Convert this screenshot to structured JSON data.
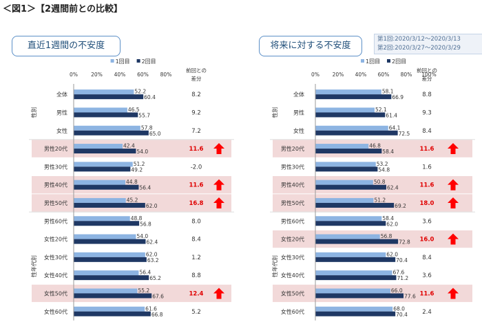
{
  "figure_title": "＜図1＞【2週間前との比較】",
  "date_legend": {
    "round1": "第1回:2020/3/12〜2020/3/13",
    "round2": "第2回:2020/3/27〜2020/3/29"
  },
  "colors": {
    "series1": "#8db4e2",
    "series2": "#1f3864",
    "highlight": "#f2d9d9",
    "increase_text": "#e00000",
    "arrow": "#ff0000",
    "axis": "#999999",
    "panel_border": "#5b8fc7"
  },
  "diff_header": [
    "前回との",
    "差分"
  ],
  "group_labels": {
    "gender": "性別",
    "gender_age": "性年代別"
  },
  "chart_data": [
    {
      "type": "bar",
      "orientation": "horizontal",
      "title": "直近1週間の不安度",
      "xlim": [
        0,
        80
      ],
      "x_ticks": [
        "0%",
        "20%",
        "40%",
        "60%",
        "80%"
      ],
      "series": [
        {
          "name": "1回目",
          "values": [
            52.2,
            46.5,
            57.8,
            42.4,
            51.2,
            44.8,
            45.2,
            48.8,
            54.0,
            62.0,
            56.4,
            55.2,
            61.6
          ]
        },
        {
          "name": "2回目",
          "values": [
            60.4,
            55.7,
            65.0,
            54.0,
            49.2,
            56.4,
            62.0,
            56.8,
            62.4,
            63.2,
            65.2,
            67.6,
            66.8
          ]
        }
      ],
      "categories": [
        "全体",
        "男性",
        "女性",
        "男性20代",
        "男性30代",
        "男性40代",
        "男性50代",
        "男性60代",
        "女性20代",
        "女性30代",
        "女性40代",
        "女性50代",
        "女性60代"
      ],
      "diffs": [
        "8.2",
        "9.2",
        "7.2",
        "11.6",
        "-2.0",
        "11.6",
        "16.8",
        "8.0",
        "8.4",
        "1.2",
        "8.8",
        "12.4",
        "5.2"
      ],
      "highlighted": [
        false,
        false,
        false,
        true,
        false,
        true,
        true,
        false,
        false,
        false,
        false,
        true,
        false
      ],
      "grid": false,
      "legend_position": "top"
    },
    {
      "type": "bar",
      "orientation": "horizontal",
      "title": "将来に対する不安度",
      "xlim": [
        0,
        100
      ],
      "x_ticks": [
        "0%",
        "20%",
        "40%",
        "60%",
        "80%",
        "100%"
      ],
      "series": [
        {
          "name": "1回目",
          "values": [
            58.1,
            52.1,
            64.1,
            46.8,
            53.2,
            50.8,
            51.2,
            58.4,
            56.8,
            62.0,
            67.6,
            66.0,
            68.0
          ]
        },
        {
          "name": "2回目",
          "values": [
            66.9,
            61.4,
            72.5,
            58.4,
            54.8,
            62.4,
            69.2,
            62.0,
            72.8,
            70.4,
            71.2,
            77.6,
            70.4
          ]
        }
      ],
      "categories": [
        "全体",
        "男性",
        "女性",
        "男性20代",
        "男性30代",
        "男性40代",
        "男性50代",
        "男性60代",
        "女性20代",
        "女性30代",
        "女性40代",
        "女性50代",
        "女性60代"
      ],
      "diffs": [
        "8.8",
        "9.3",
        "8.4",
        "11.6",
        "1.6",
        "11.6",
        "18.0",
        "3.6",
        "16.0",
        "8.4",
        "3.6",
        "11.6",
        "2.4"
      ],
      "highlighted": [
        false,
        false,
        false,
        true,
        false,
        true,
        true,
        false,
        true,
        false,
        false,
        true,
        false
      ],
      "grid": false,
      "legend_position": "top"
    }
  ]
}
